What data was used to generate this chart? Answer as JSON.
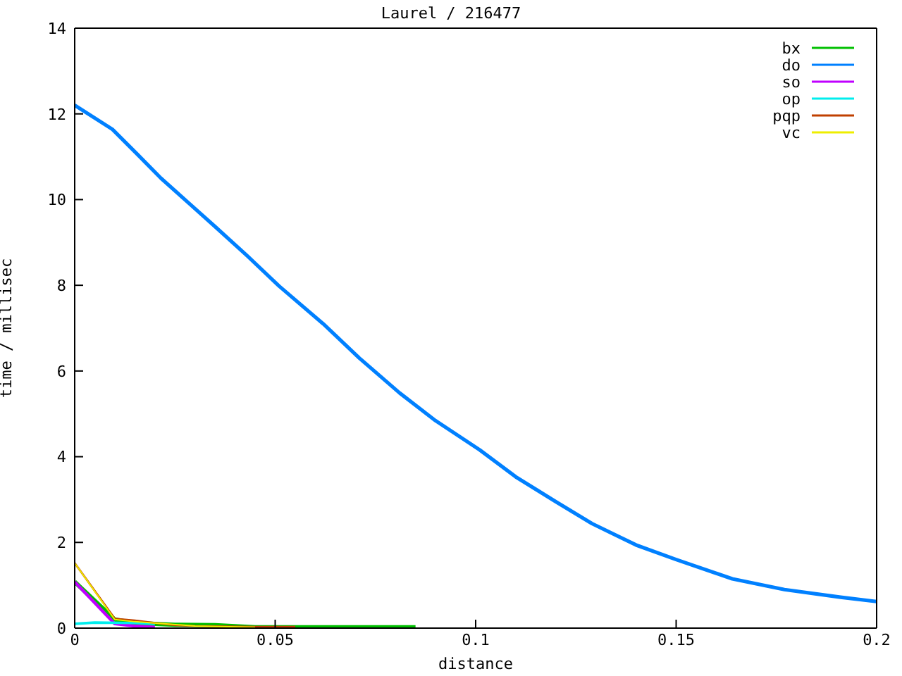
{
  "chart_data": {
    "type": "line",
    "title": "Laurel / 216477",
    "xlabel": "distance",
    "ylabel": "time / millisec",
    "xlim": [
      0,
      0.2
    ],
    "xticks": [
      0,
      0.05,
      0.1,
      0.15,
      0.2
    ],
    "ylim": [
      0,
      14
    ],
    "yticks": [
      0,
      2,
      4,
      6,
      8,
      10,
      12,
      14
    ],
    "legend": "top right",
    "series": [
      {
        "name": "bx",
        "color": "#00c000",
        "x": [
          0,
          0.01,
          0.015,
          0.025,
          0.035,
          0.045,
          0.085
        ],
        "values": [
          1.08,
          0.2,
          0.12,
          0.08,
          0.07,
          0.02,
          0.02
        ]
      },
      {
        "name": "do",
        "color": "#0080ff",
        "x": [
          0,
          0.0094,
          0.0155,
          0.0215,
          0.0282,
          0.035,
          0.043,
          0.051,
          0.062,
          0.071,
          0.081,
          0.09,
          0.101,
          0.11,
          0.12,
          0.129,
          0.14,
          0.15,
          0.164,
          0.177,
          0.191,
          0.2
        ],
        "values": [
          12.2,
          11.64,
          11.07,
          10.5,
          9.94,
          9.37,
          8.69,
          7.98,
          7.1,
          6.3,
          5.49,
          4.84,
          4.16,
          3.53,
          2.95,
          2.44,
          1.94,
          1.6,
          1.15,
          0.9,
          0.72,
          0.62
        ]
      },
      {
        "name": "so",
        "color": "#c000ff",
        "x": [
          0,
          0.01,
          0.015,
          0.02
        ],
        "values": [
          1.08,
          0.1,
          0.05,
          0.02
        ]
      },
      {
        "name": "op",
        "color": "#00eeee",
        "x": [
          0,
          0.005,
          0.015,
          0.02
        ],
        "values": [
          0.1,
          0.13,
          0.12,
          0.1
        ]
      },
      {
        "name": "pqp",
        "color": "#c04000",
        "x": [
          0,
          0.01,
          0.015,
          0.02,
          0.025,
          0.03,
          0.045,
          0.055
        ],
        "values": [
          1.52,
          0.22,
          0.18,
          0.12,
          0.07,
          0.05,
          0.03,
          0.03
        ]
      },
      {
        "name": "vc",
        "color": "#eeee00",
        "x": [
          0,
          0.01,
          0.015,
          0.03,
          0.045
        ],
        "values": [
          1.52,
          0.2,
          0.15,
          0.05,
          0.02
        ]
      }
    ]
  }
}
